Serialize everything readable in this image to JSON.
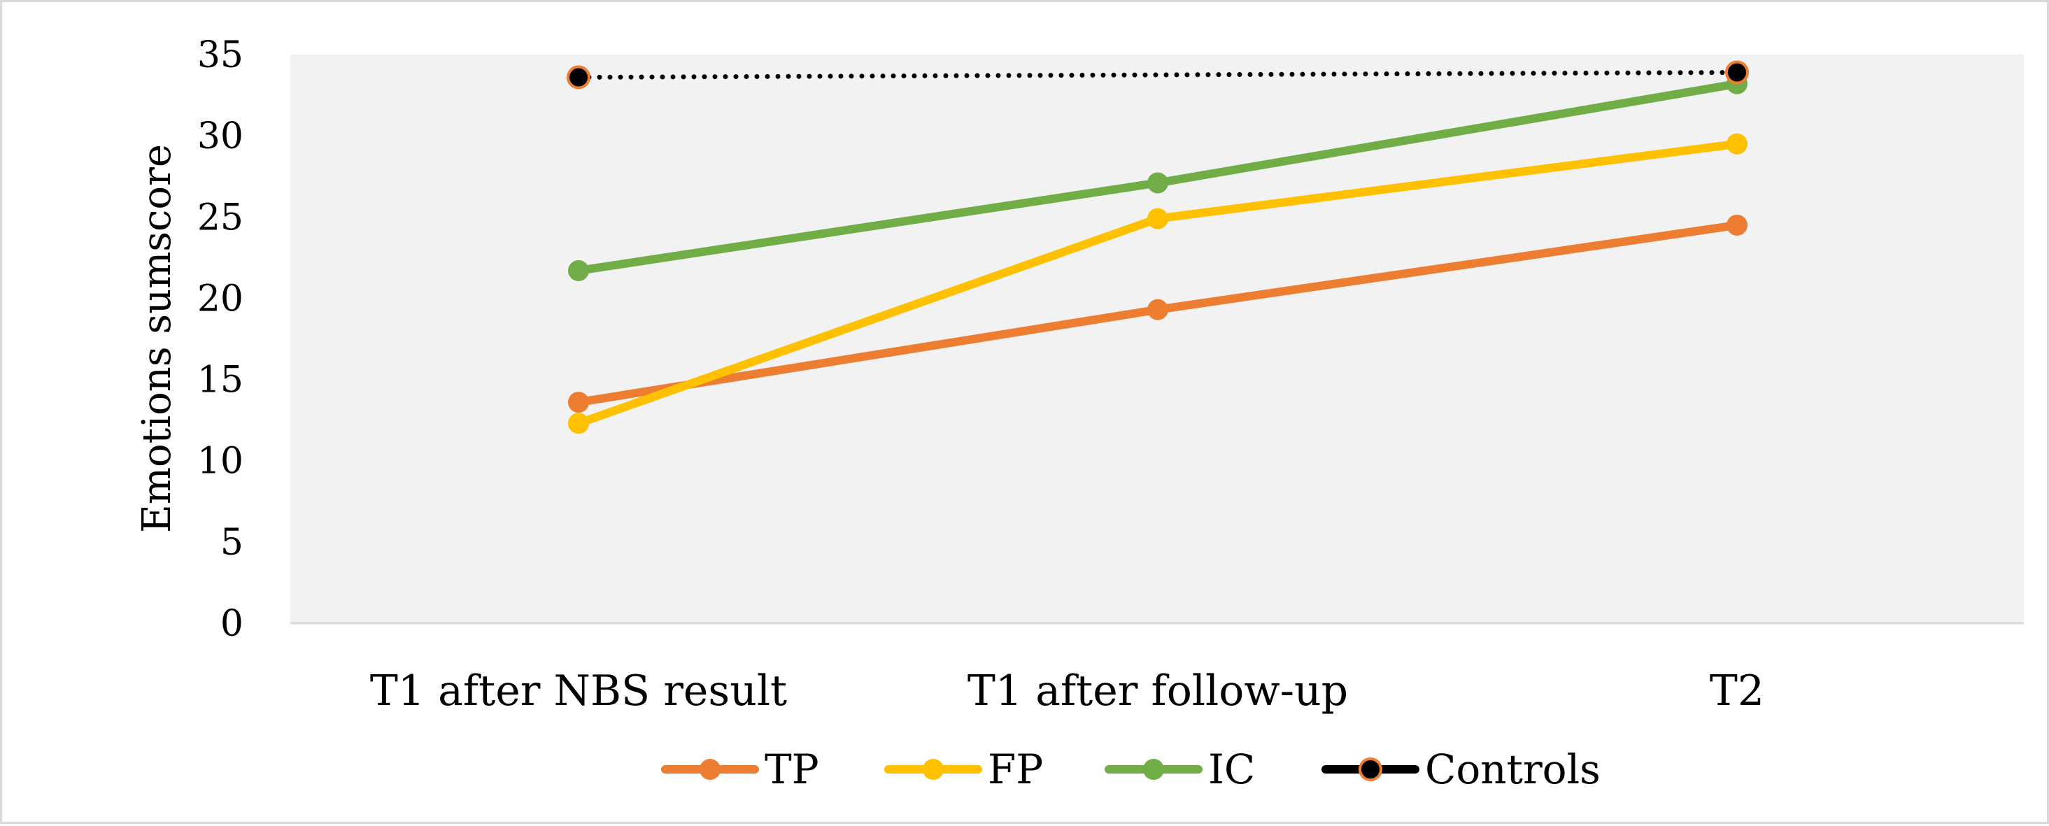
{
  "chart_data": {
    "type": "line",
    "title": "",
    "xlabel": "",
    "ylabel": "Emotions sumscore",
    "ylim": [
      0,
      35
    ],
    "yticks": [
      "0",
      "5",
      "10",
      "15",
      "20",
      "25",
      "30",
      "35"
    ],
    "categories": [
      "T1 after NBS result",
      "T1 after follow-up",
      "T2"
    ],
    "grid": false,
    "legend_position": "bottom",
    "plot_background": "#f2f2f2",
    "series": [
      {
        "name": "TP",
        "color": "#ed7d31",
        "marker_fill": "#ed7d31",
        "line_style": "solid",
        "values": [
          13.6,
          19.3,
          24.5
        ]
      },
      {
        "name": "FP",
        "color": "#ffc000",
        "marker_fill": "#ffc000",
        "line_style": "solid",
        "values": [
          12.3,
          24.9,
          29.5
        ]
      },
      {
        "name": "IC",
        "color": "#70ad47",
        "marker_fill": "#70ad47",
        "line_style": "solid",
        "values": [
          21.7,
          27.1,
          33.2
        ]
      },
      {
        "name": "Controls",
        "color": "#000000",
        "marker_fill": "#000000",
        "marker_edge": "#ed7d31",
        "line_style": "dotted",
        "values": [
          33.6,
          null,
          33.9
        ]
      }
    ]
  }
}
